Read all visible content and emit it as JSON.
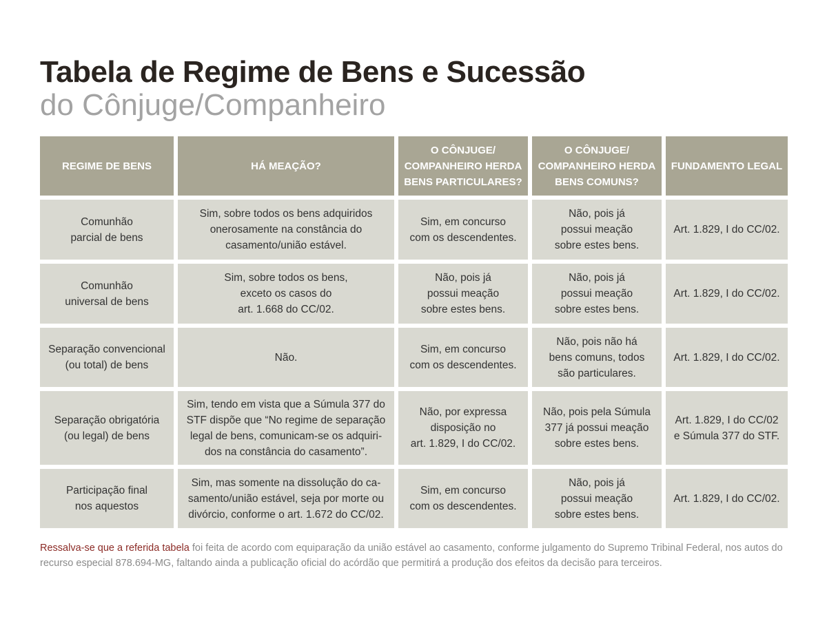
{
  "title": "Tabela de Regime de Bens e Sucessão",
  "subtitle": "do Cônjuge/Companheiro",
  "colors": {
    "header_bg": "#a9a694",
    "cell_bg": "#d9d9d1",
    "title": "#2a2420",
    "note_highlight": "#8b2a25"
  },
  "table": {
    "headers": [
      "REGIME DE BENS",
      "HÁ MEAÇÃO?",
      "O CÔNJUGE/\nCOMPANHEIRO HERDA\nBENS PARTICULARES?",
      "O CÔNJUGE/\nCOMPANHEIRO HERDA\nBENS COMUNS?",
      "FUNDAMENTO LEGAL"
    ],
    "rows": [
      [
        "Comunhão\nparcial de bens",
        "Sim, sobre todos os bens adquiridos\nonerosamente na constância do\ncasamento/união estável.",
        "Sim, em concurso\ncom os descendentes.",
        "Não, pois já\npossui meação\nsobre estes bens.",
        "Art. 1.829, I do CC/02."
      ],
      [
        "Comunhão\nuniversal de bens",
        "Sim, sobre todos os bens,\nexceto os casos do\nart. 1.668 do CC/02.",
        "Não, pois já\npossui meação\nsobre estes bens.",
        "Não, pois já\npossui meação\nsobre estes bens.",
        "Art. 1.829, I do CC/02."
      ],
      [
        "Separação convencional\n(ou total) de bens",
        "Não.",
        "Sim, em concurso\ncom os descendentes.",
        "Não, pois não há\nbens comuns, todos\nsão particulares.",
        "Art. 1.829, I do CC/02."
      ],
      [
        "Separação obrigatória\n(ou legal) de bens",
        "Sim, tendo em vista que a Súmula 377 do\nSTF dispõe que “No regime de separação\nlegal de bens, comunicam-se os adquiri-\ndos na constância do casamento”.",
        "Não, por expressa\ndisposição no\nart. 1.829, I do CC/02.",
        "Não, pois pela Súmula\n377 já possui meação\nsobre estes bens.",
        "Art. 1.829, I do CC/02\ne Súmula 377 do STF."
      ],
      [
        "Participação final\nnos aquestos",
        "Sim, mas somente na dissolução do ca-\nsamento/união estável, seja por morte ou\ndivórcio, conforme o art. 1.672 do CC/02.",
        "Sim, em concurso\ncom os descendentes.",
        "Não, pois já\npossui meação\nsobre estes bens.",
        "Art. 1.829, I do CC/02."
      ]
    ]
  },
  "note": {
    "highlight": "Ressalva-se que a referida tabela",
    "text": " foi feita de acordo com equiparação da união estável ao casamento, conforme julgamento do Supremo Tribinal Federal, nos autos do recurso especial 878.694-MG, faltando ainda a publicação oficial do acórdão que permitirá a produção dos efeitos da decisão para terceiros."
  }
}
